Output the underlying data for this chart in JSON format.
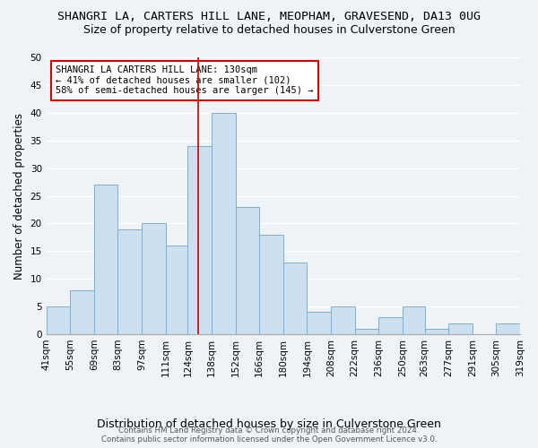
{
  "title": "SHANGRI LA, CARTERS HILL LANE, MEOPHAM, GRAVESEND, DA13 0UG",
  "subtitle": "Size of property relative to detached houses in Culverstone Green",
  "xlabel": "Distribution of detached houses by size in Culverstone Green",
  "ylabel": "Number of detached properties",
  "bin_edges": [
    41,
    55,
    69,
    83,
    97,
    111,
    124,
    138,
    152,
    166,
    180,
    194,
    208,
    222,
    236,
    250,
    263,
    277,
    291,
    305,
    319
  ],
  "counts": [
    5,
    8,
    27,
    19,
    20,
    16,
    34,
    40,
    23,
    18,
    13,
    4,
    5,
    1,
    3,
    5,
    1,
    2,
    0,
    2
  ],
  "bar_color": "#cce0f0",
  "bar_edge_color": "#7ab0d4",
  "vline_x": 130,
  "vline_color": "#cc0000",
  "annotation_box_text": "SHANGRI LA CARTERS HILL LANE: 130sqm\n← 41% of detached houses are smaller (102)\n58% of semi-detached houses are larger (145) →",
  "footer_line1": "Contains HM Land Registry data © Crown copyright and database right 2024.",
  "footer_line2": "Contains public sector information licensed under the Open Government Licence v3.0.",
  "ylim": [
    0,
    50
  ],
  "background_color": "#eef3f8",
  "plot_bg_color": "#eef3f8",
  "grid_color": "#ffffff",
  "title_fontsize": 9.5,
  "subtitle_fontsize": 9,
  "tick_label_fontsize": 7.5,
  "ylabel_fontsize": 8.5,
  "xlabel_fontsize": 9
}
